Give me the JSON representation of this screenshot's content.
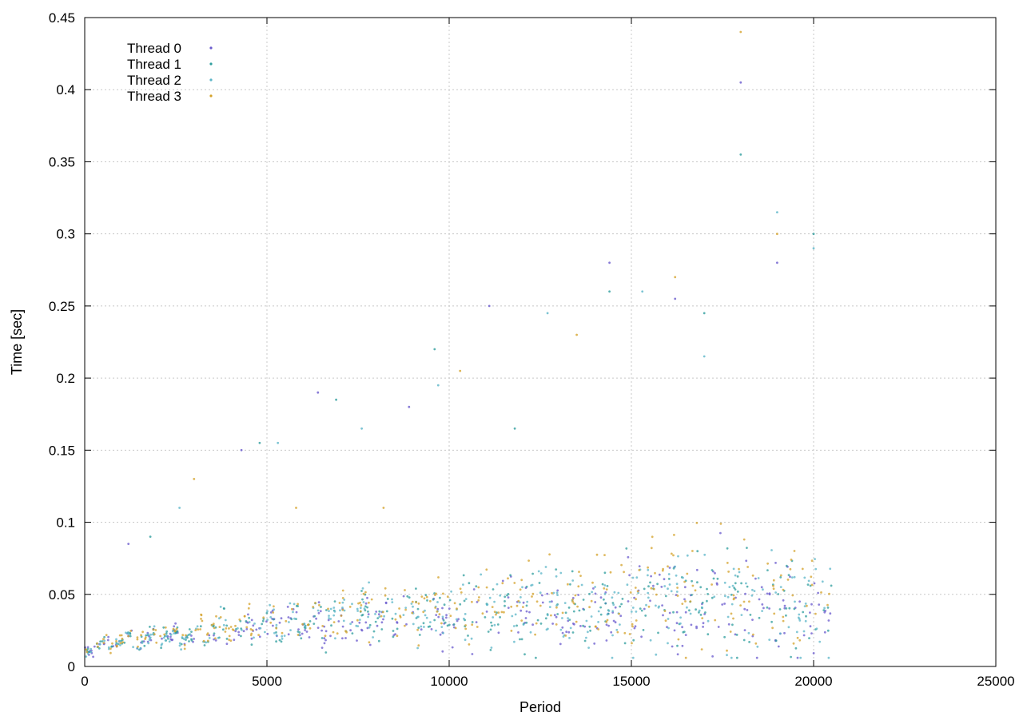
{
  "chart_data": {
    "type": "scatter",
    "title": "",
    "xlabel": "Period",
    "ylabel": "Time [sec]",
    "xlim": [
      0,
      25000
    ],
    "ylim": [
      0,
      0.45
    ],
    "x_ticks": [
      0,
      5000,
      10000,
      15000,
      20000,
      25000
    ],
    "x_tick_labels": [
      "0",
      "5000",
      "10000",
      "15000",
      "20000",
      "25000"
    ],
    "y_ticks": [
      0,
      0.05,
      0.1,
      0.15,
      0.2,
      0.25,
      0.3,
      0.35,
      0.4,
      0.45
    ],
    "y_tick_labels": [
      "0",
      "0.05",
      "0.1",
      "0.15",
      "0.2",
      "0.25",
      "0.3",
      "0.35",
      "0.4",
      "0.45"
    ],
    "grid": true,
    "legend_position": "top-left",
    "x_range_of_data": [
      0,
      20500
    ],
    "series": [
      {
        "name": "Thread 0",
        "color": "#6a5acd",
        "description_points": [
          [
            0,
            0.012
          ],
          [
            1000,
            0.016
          ],
          [
            2000,
            0.018
          ],
          [
            3000,
            0.02
          ],
          [
            4000,
            0.024
          ],
          [
            5000,
            0.026
          ],
          [
            6000,
            0.028
          ],
          [
            7000,
            0.028
          ],
          [
            8000,
            0.03
          ],
          [
            9000,
            0.032
          ],
          [
            10000,
            0.034
          ],
          [
            11000,
            0.036
          ],
          [
            12000,
            0.036
          ],
          [
            13000,
            0.038
          ],
          [
            14000,
            0.036
          ],
          [
            15000,
            0.04
          ],
          [
            16000,
            0.042
          ],
          [
            17000,
            0.042
          ],
          [
            18000,
            0.04
          ],
          [
            19000,
            0.036
          ],
          [
            20000,
            0.038
          ],
          [
            20500,
            0.04
          ]
        ]
      },
      {
        "name": "Thread 1",
        "color": "#2f9e9e",
        "description_points": [
          [
            0,
            0.012
          ],
          [
            1000,
            0.017
          ],
          [
            2000,
            0.019
          ],
          [
            3000,
            0.021
          ],
          [
            4000,
            0.025
          ],
          [
            5000,
            0.027
          ],
          [
            6000,
            0.029
          ],
          [
            7000,
            0.03
          ],
          [
            8000,
            0.032
          ],
          [
            9000,
            0.034
          ],
          [
            10000,
            0.036
          ],
          [
            11000,
            0.038
          ],
          [
            12000,
            0.038
          ],
          [
            13000,
            0.04
          ],
          [
            14000,
            0.038
          ],
          [
            15000,
            0.042
          ],
          [
            16000,
            0.045
          ],
          [
            17000,
            0.046
          ],
          [
            18000,
            0.048
          ],
          [
            19000,
            0.04
          ],
          [
            20000,
            0.042
          ],
          [
            20500,
            0.044
          ]
        ]
      },
      {
        "name": "Thread 2",
        "color": "#5bb5c8",
        "description_points": [
          [
            0,
            0.012
          ],
          [
            1000,
            0.017
          ],
          [
            2000,
            0.019
          ],
          [
            3000,
            0.022
          ],
          [
            4000,
            0.025
          ],
          [
            5000,
            0.028
          ],
          [
            6000,
            0.03
          ],
          [
            7000,
            0.031
          ],
          [
            8000,
            0.033
          ],
          [
            9000,
            0.035
          ],
          [
            10000,
            0.037
          ],
          [
            11000,
            0.04
          ],
          [
            12000,
            0.04
          ],
          [
            13000,
            0.042
          ],
          [
            14000,
            0.04
          ],
          [
            15000,
            0.044
          ],
          [
            16000,
            0.047
          ],
          [
            17000,
            0.048
          ],
          [
            18000,
            0.052
          ],
          [
            19000,
            0.042
          ],
          [
            20000,
            0.044
          ],
          [
            20500,
            0.046
          ]
        ]
      },
      {
        "name": "Thread 3",
        "color": "#d4a22a",
        "description_points": [
          [
            0,
            0.013
          ],
          [
            1000,
            0.018
          ],
          [
            2000,
            0.02
          ],
          [
            3000,
            0.023
          ],
          [
            4000,
            0.027
          ],
          [
            5000,
            0.03
          ],
          [
            6000,
            0.032
          ],
          [
            7000,
            0.033
          ],
          [
            8000,
            0.035
          ],
          [
            9000,
            0.037
          ],
          [
            10000,
            0.039
          ],
          [
            11000,
            0.042
          ],
          [
            12000,
            0.042
          ],
          [
            13000,
            0.044
          ],
          [
            14000,
            0.042
          ],
          [
            15000,
            0.046
          ],
          [
            16000,
            0.049
          ],
          [
            17000,
            0.05
          ],
          [
            18000,
            0.055
          ],
          [
            19000,
            0.044
          ],
          [
            20000,
            0.046
          ],
          [
            20500,
            0.048
          ]
        ]
      }
    ],
    "outliers": [
      [
        1200,
        0.085
      ],
      [
        1800,
        0.09
      ],
      [
        2600,
        0.11
      ],
      [
        3000,
        0.13
      ],
      [
        4300,
        0.15
      ],
      [
        4800,
        0.155
      ],
      [
        5300,
        0.155
      ],
      [
        5800,
        0.11
      ],
      [
        6400,
        0.19
      ],
      [
        6900,
        0.185
      ],
      [
        7600,
        0.165
      ],
      [
        8200,
        0.11
      ],
      [
        8900,
        0.18
      ],
      [
        9600,
        0.22
      ],
      [
        9700,
        0.195
      ],
      [
        10300,
        0.205
      ],
      [
        11100,
        0.25
      ],
      [
        11800,
        0.165
      ],
      [
        12700,
        0.245
      ],
      [
        13500,
        0.23
      ],
      [
        14400,
        0.28
      ],
      [
        14400,
        0.26
      ],
      [
        15300,
        0.26
      ],
      [
        16200,
        0.27
      ],
      [
        16200,
        0.255
      ],
      [
        17000,
        0.245
      ],
      [
        17000,
        0.215
      ],
      [
        18000,
        0.44
      ],
      [
        18000,
        0.405
      ],
      [
        18000,
        0.355
      ],
      [
        19000,
        0.315
      ],
      [
        19000,
        0.3
      ],
      [
        19000,
        0.28
      ],
      [
        20000,
        0.3
      ],
      [
        20000,
        0.29
      ]
    ]
  }
}
